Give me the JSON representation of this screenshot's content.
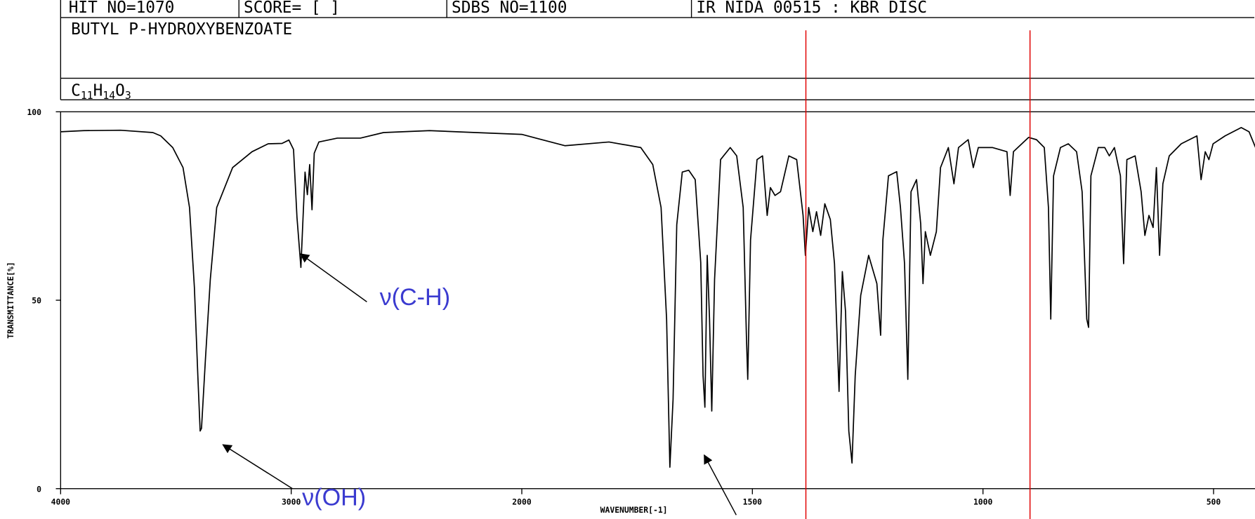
{
  "header": {
    "top_row": [
      "HIT NO=1070",
      "SCORE=  [   ]",
      "SDBS NO=1100",
      "IR NIDA 00515 : KBR DISC"
    ],
    "compound": "BUTYL P-HYDROXYBENZOATE",
    "formula": [
      "C",
      "11",
      "H",
      "14",
      "O",
      "3"
    ]
  },
  "chart_data": {
    "type": "line",
    "x_label": "WAVENUMBER[-1]",
    "y_label": "TRANSMITTANCE[%]",
    "color": "#000000",
    "x": [
      4000,
      3900,
      3740,
      3600,
      3566,
      3514,
      3469,
      3441,
      3420,
      3405,
      3395,
      3389,
      3372,
      3351,
      3323,
      3254,
      3170,
      3100,
      3040,
      3010,
      2990,
      2975,
      2958,
      2950,
      2940,
      2930,
      2920,
      2910,
      2900,
      2880,
      2800,
      2700,
      2600,
      2400,
      2200,
      2000,
      1906,
      1811,
      1742,
      1716,
      1698,
      1686,
      1679,
      1672,
      1664,
      1652,
      1638,
      1624,
      1612,
      1607,
      1603,
      1598,
      1593,
      1588,
      1582,
      1569,
      1548,
      1534,
      1520,
      1513,
      1510,
      1504,
      1490,
      1478,
      1468,
      1461,
      1451,
      1439,
      1421,
      1404,
      1390,
      1385,
      1378,
      1369,
      1361,
      1352,
      1343,
      1331,
      1322,
      1312,
      1305,
      1298,
      1291,
      1284,
      1277,
      1265,
      1248,
      1230,
      1222,
      1217,
      1205,
      1187,
      1179,
      1170,
      1163,
      1156,
      1144,
      1135,
      1130,
      1125,
      1114,
      1101,
      1092,
      1075,
      1063,
      1053,
      1032,
      1021,
      1010,
      979,
      948,
      941,
      934,
      901,
      884,
      867,
      858,
      853,
      847,
      832,
      815,
      797,
      785,
      775,
      771,
      766,
      750,
      736,
      726,
      715,
      702,
      695,
      688,
      670,
      657,
      649,
      640,
      631,
      624,
      617,
      610,
      596,
      570,
      536,
      527,
      518,
      510,
      501,
      475,
      440,
      423,
      409
    ],
    "values": [
      94.7,
      95.0,
      95.1,
      94.5,
      93.6,
      90.5,
      85.2,
      74.6,
      53.4,
      30,
      15.3,
      16,
      34.3,
      55.5,
      74.6,
      85.2,
      89.4,
      91.5,
      91.6,
      92.5,
      90,
      72,
      58.7,
      70,
      84,
      78,
      86,
      74,
      89,
      92,
      93,
      93,
      94.5,
      95,
      94.5,
      94,
      91,
      92,
      90.5,
      86,
      74.6,
      45,
      5.7,
      23.7,
      70,
      84,
      84.5,
      82,
      60,
      30,
      21.6,
      61.9,
      45,
      20.6,
      55.5,
      87.3,
      90.5,
      88.3,
      74.6,
      40.7,
      29,
      66,
      87.3,
      88.3,
      72.5,
      79.9,
      77.8,
      78.8,
      88.3,
      87.3,
      72.5,
      61.9,
      74.6,
      68.2,
      73.5,
      67.2,
      75.6,
      71.4,
      59.7,
      25.8,
      57.6,
      47,
      15.3,
      6.8,
      30,
      51.3,
      61.9,
      54.4,
      40.7,
      66,
      83,
      84.1,
      74.6,
      59.7,
      29,
      78.8,
      82,
      70.3,
      54.4,
      68.2,
      61.9,
      68.2,
      85.2,
      90.5,
      80.9,
      90.5,
      92.6,
      85.2,
      90.5,
      90.5,
      89.4,
      77.8,
      89.4,
      93.2,
      92.6,
      90.5,
      74.6,
      45,
      83,
      90.5,
      91.5,
      89.4,
      78.8,
      45,
      42.8,
      83,
      90.5,
      90.5,
      88.3,
      90.5,
      83,
      59.7,
      87.3,
      88.3,
      78.8,
      67.2,
      72.5,
      69.3,
      85.2,
      61.9,
      80.9,
      88.3,
      91.5,
      93.6,
      82,
      89.4,
      87.3,
      91.5,
      93.6,
      95.8,
      94.7,
      90.5
    ],
    "xlim": [
      4000,
      409
    ],
    "xticks": [
      4000,
      3000,
      2000,
      1500,
      1000,
      500
    ],
    "ylim": [
      0,
      100
    ],
    "yticks": [
      0,
      50,
      100
    ],
    "reference_lines": [
      {
        "x": 1384,
        "color": "#e00000"
      },
      {
        "x": 898,
        "color": "#e00000"
      }
    ],
    "annotations": [
      {
        "text": "ν(C-H)",
        "color": "#3b3bd0"
      },
      {
        "text": "ν(OH)",
        "color": "#3b3bd0"
      }
    ]
  }
}
